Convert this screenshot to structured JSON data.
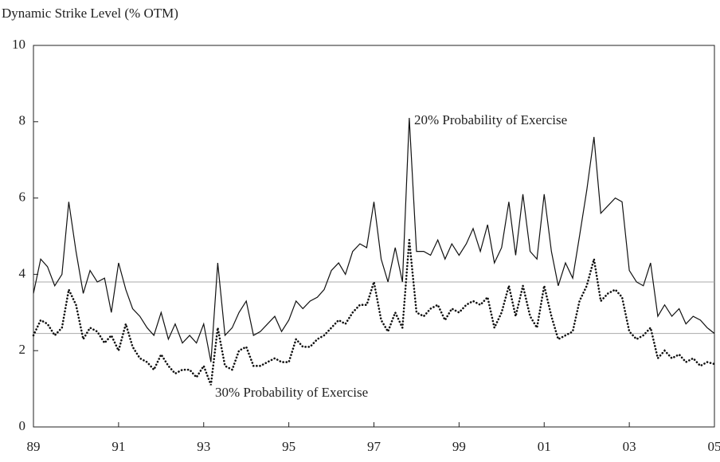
{
  "chart_data": {
    "type": "line",
    "y_label": "Dynamic Strike Level (% OTM)",
    "xlim": [
      1989,
      2005
    ],
    "ylim": [
      0,
      10
    ],
    "yticks": [
      0,
      2,
      4,
      6,
      8,
      10
    ],
    "xticks": [
      {
        "value": 1989,
        "label": "89"
      },
      {
        "value": 1991,
        "label": "91"
      },
      {
        "value": 1993,
        "label": "93"
      },
      {
        "value": 1995,
        "label": "95"
      },
      {
        "value": 1997,
        "label": "97"
      },
      {
        "value": 1999,
        "label": "99"
      },
      {
        "value": 2001,
        "label": "01"
      },
      {
        "value": 2003,
        "label": "03"
      },
      {
        "value": 2005,
        "label": "05"
      }
    ],
    "reference_lines": [
      3.8,
      2.45
    ],
    "reference_color": "#aaaaaa",
    "annotations": [
      "20% Probability of Exercise",
      "30% Probability of Exercise"
    ],
    "x": [
      1989,
      1989.17,
      1989.33,
      1989.5,
      1989.67,
      1989.83,
      1990,
      1990.17,
      1990.33,
      1990.5,
      1990.67,
      1990.83,
      1991,
      1991.17,
      1991.33,
      1991.5,
      1991.67,
      1991.83,
      1992,
      1992.17,
      1992.33,
      1992.5,
      1992.67,
      1992.83,
      1993,
      1993.17,
      1993.33,
      1993.5,
      1993.67,
      1993.83,
      1994,
      1994.17,
      1994.33,
      1994.5,
      1994.67,
      1994.83,
      1995,
      1995.17,
      1995.33,
      1995.5,
      1995.67,
      1995.83,
      1996,
      1996.17,
      1996.33,
      1996.5,
      1996.67,
      1996.83,
      1997,
      1997.17,
      1997.33,
      1997.5,
      1997.67,
      1997.83,
      1998,
      1998.17,
      1998.33,
      1998.5,
      1998.67,
      1998.83,
      1999,
      1999.17,
      1999.33,
      1999.5,
      1999.67,
      1999.83,
      2000,
      2000.17,
      2000.33,
      2000.5,
      2000.67,
      2000.83,
      2001,
      2001.17,
      2001.33,
      2001.5,
      2001.67,
      2001.83,
      2002,
      2002.17,
      2002.33,
      2002.5,
      2002.67,
      2002.83,
      2003,
      2003.17,
      2003.33,
      2003.5,
      2003.67,
      2003.83,
      2004,
      2004.17,
      2004.33,
      2004.5,
      2004.67,
      2004.83,
      2005
    ],
    "series": [
      {
        "name": "20% Probability of Exercise",
        "color": "#111111",
        "dash": "solid",
        "values": [
          3.5,
          4.4,
          4.2,
          3.7,
          4.0,
          5.9,
          4.6,
          3.5,
          4.1,
          3.8,
          3.9,
          3.0,
          4.3,
          3.6,
          3.1,
          2.9,
          2.6,
          2.4,
          3.0,
          2.3,
          2.7,
          2.2,
          2.4,
          2.2,
          2.7,
          1.7,
          4.3,
          2.4,
          2.6,
          3.0,
          3.3,
          2.4,
          2.5,
          2.7,
          2.9,
          2.5,
          2.8,
          3.3,
          3.1,
          3.3,
          3.4,
          3.6,
          4.1,
          4.3,
          4.0,
          4.6,
          4.8,
          4.7,
          5.9,
          4.4,
          3.8,
          4.7,
          3.8,
          8.1,
          4.6,
          4.6,
          4.5,
          4.9,
          4.4,
          4.8,
          4.5,
          4.8,
          5.2,
          4.6,
          5.3,
          4.3,
          4.7,
          5.9,
          4.5,
          6.1,
          4.6,
          4.4,
          6.1,
          4.6,
          3.7,
          4.3,
          3.9,
          5.0,
          6.2,
          7.6,
          5.6,
          5.8,
          6.0,
          5.9,
          4.1,
          3.8,
          3.7,
          4.3,
          2.9,
          3.2,
          2.9,
          3.1,
          2.7,
          2.9,
          2.8,
          2.6,
          2.45
        ]
      },
      {
        "name": "30% Probability of Exercise",
        "color": "#111111",
        "dash": "dotted",
        "values": [
          2.4,
          2.8,
          2.7,
          2.4,
          2.6,
          3.6,
          3.2,
          2.3,
          2.6,
          2.5,
          2.2,
          2.4,
          2.0,
          2.7,
          2.1,
          1.8,
          1.7,
          1.5,
          1.9,
          1.6,
          1.4,
          1.5,
          1.5,
          1.3,
          1.6,
          1.1,
          2.6,
          1.6,
          1.5,
          2.0,
          2.1,
          1.6,
          1.6,
          1.7,
          1.8,
          1.7,
          1.7,
          2.3,
          2.1,
          2.1,
          2.3,
          2.4,
          2.6,
          2.8,
          2.7,
          3.0,
          3.2,
          3.2,
          3.8,
          2.8,
          2.5,
          3.0,
          2.6,
          4.9,
          3.0,
          2.9,
          3.1,
          3.2,
          2.8,
          3.1,
          3.0,
          3.2,
          3.3,
          3.2,
          3.4,
          2.6,
          3.0,
          3.7,
          2.9,
          3.7,
          2.9,
          2.6,
          3.7,
          2.9,
          2.3,
          2.4,
          2.5,
          3.3,
          3.7,
          4.4,
          3.3,
          3.5,
          3.6,
          3.4,
          2.5,
          2.3,
          2.4,
          2.6,
          1.8,
          2.0,
          1.8,
          1.9,
          1.7,
          1.8,
          1.6,
          1.7,
          1.65
        ]
      }
    ]
  }
}
